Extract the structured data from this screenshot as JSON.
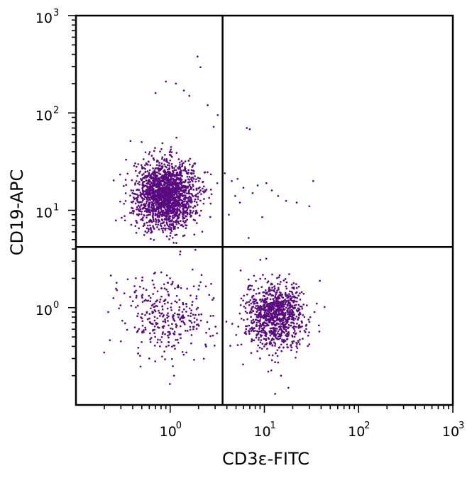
{
  "chart_data": {
    "type": "scatter",
    "title": "",
    "xlabel": "CD3ε-FITC",
    "ylabel": "CD19-APC",
    "x_scale": "log10",
    "y_scale": "log10",
    "xlim": [
      0.1,
      1000
    ],
    "ylim": [
      0.1,
      1000
    ],
    "x_ticks": [
      {
        "base": "10",
        "exp": "0",
        "value": 1
      },
      {
        "base": "10",
        "exp": "1",
        "value": 10
      },
      {
        "base": "10",
        "exp": "2",
        "value": 100
      },
      {
        "base": "10",
        "exp": "3",
        "value": 1000
      }
    ],
    "y_ticks": [
      {
        "base": "10",
        "exp": "0",
        "value": 1
      },
      {
        "base": "10",
        "exp": "1",
        "value": 10
      },
      {
        "base": "10",
        "exp": "2",
        "value": 100
      },
      {
        "base": "10",
        "exp": "3",
        "value": 1000
      }
    ],
    "gates": {
      "x": 3.6,
      "y": 4.2
    },
    "grid": false,
    "point_color": "#5a0a80",
    "populations": [
      {
        "center_x": 0.9,
        "center_y": 14.5,
        "spread_x": 0.16,
        "spread_y": 0.17,
        "count": 1900
      },
      {
        "center_x": 13,
        "center_y": 0.85,
        "spread_x": 0.15,
        "spread_y": 0.17,
        "count": 1000
      },
      {
        "center_x": 0.95,
        "center_y": 0.85,
        "spread_x": 0.24,
        "spread_y": 0.22,
        "count": 320
      }
    ],
    "points": [
      [
        1.95,
        380
      ],
      [
        2.1,
        295
      ],
      [
        0.9,
        210
      ],
      [
        1.15,
        200
      ],
      [
        1.6,
        150
      ],
      [
        1.4,
        170
      ],
      [
        0.7,
        160
      ],
      [
        2.5,
        120
      ],
      [
        3.2,
        95
      ],
      [
        6.5,
        70
      ],
      [
        7.0,
        68
      ],
      [
        2.9,
        72
      ],
      [
        3.8,
        24
      ],
      [
        4.5,
        20
      ],
      [
        5.2,
        21
      ],
      [
        6.0,
        17
      ],
      [
        7.5,
        15
      ],
      [
        8.5,
        18
      ],
      [
        12,
        16
      ],
      [
        14,
        14
      ],
      [
        17,
        12.5
      ],
      [
        22,
        12
      ],
      [
        30,
        11
      ],
      [
        33,
        20
      ],
      [
        5.5,
        12
      ],
      [
        4.2,
        9
      ],
      [
        9.5,
        8.5
      ],
      [
        6.8,
        5.2
      ],
      [
        4.9,
        14
      ],
      [
        10.5,
        19
      ],
      [
        2.9,
        1.25
      ],
      [
        2.6,
        1.35
      ],
      [
        0.27,
        1.8
      ],
      [
        0.25,
        1.25
      ],
      [
        0.42,
        1.45
      ],
      [
        0.55,
        1.2
      ],
      [
        0.65,
        1.9
      ],
      [
        0.78,
        0.4
      ],
      [
        0.6,
        0.3
      ],
      [
        1.1,
        0.2
      ],
      [
        1.35,
        0.35
      ],
      [
        0.48,
        0.32
      ],
      [
        0.3,
        0.45
      ],
      [
        0.22,
        0.9
      ],
      [
        13,
        0.13
      ],
      [
        15,
        0.2
      ],
      [
        11,
        0.22
      ],
      [
        18,
        0.15
      ],
      [
        9,
        0.3
      ],
      [
        19,
        1.3
      ],
      [
        22,
        0.35
      ],
      [
        30,
        0.42
      ],
      [
        34,
        0.9
      ],
      [
        36,
        1.1
      ]
    ]
  }
}
